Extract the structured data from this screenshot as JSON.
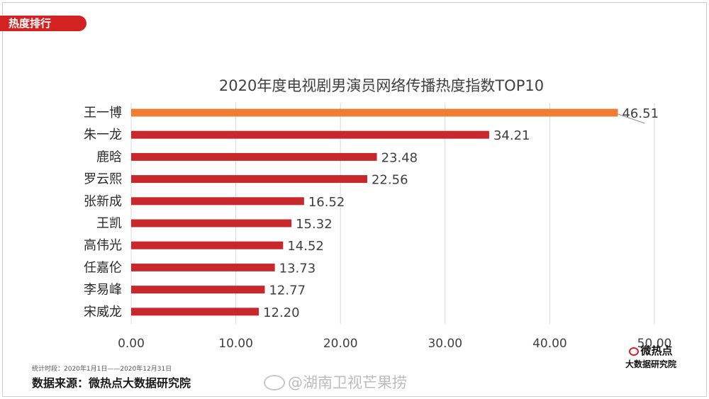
{
  "header": {
    "tag_label": "热度排行"
  },
  "chart_data": {
    "type": "bar",
    "orientation": "horizontal",
    "title": "2020年度电视剧男演员网络传播热度指数TOP10",
    "categories": [
      "王一博",
      "朱一龙",
      "鹿晗",
      "罗云熙",
      "张新成",
      "王凯",
      "高伟光",
      "任嘉伦",
      "李易峰",
      "宋威龙"
    ],
    "values": [
      46.51,
      34.21,
      23.48,
      22.56,
      16.52,
      15.32,
      14.52,
      13.73,
      12.77,
      12.2
    ],
    "value_labels": [
      "46.51",
      "34.21",
      "23.48",
      "22.56",
      "16.52",
      "15.32",
      "14.52",
      "13.73",
      "12.77",
      "12.20"
    ],
    "xlim": [
      0,
      50
    ],
    "x_ticks": [
      0,
      10,
      20,
      30,
      40,
      50
    ],
    "x_tick_labels": [
      "0.00",
      "10.00",
      "20.00",
      "30.00",
      "40.00",
      "50.00"
    ],
    "grid": true,
    "colors": {
      "highlight": "#ef7d32",
      "bar": "#c8282b",
      "grid": "#d9d9d9"
    }
  },
  "footer": {
    "period": "统计时段：2020年1月1日——2020年12月31日",
    "source": "数据来源：微热点大数据研究院",
    "logo_main": "微热点",
    "logo_sub": "大数据研究院",
    "watermark": "@湖南卫视芒果捞"
  }
}
